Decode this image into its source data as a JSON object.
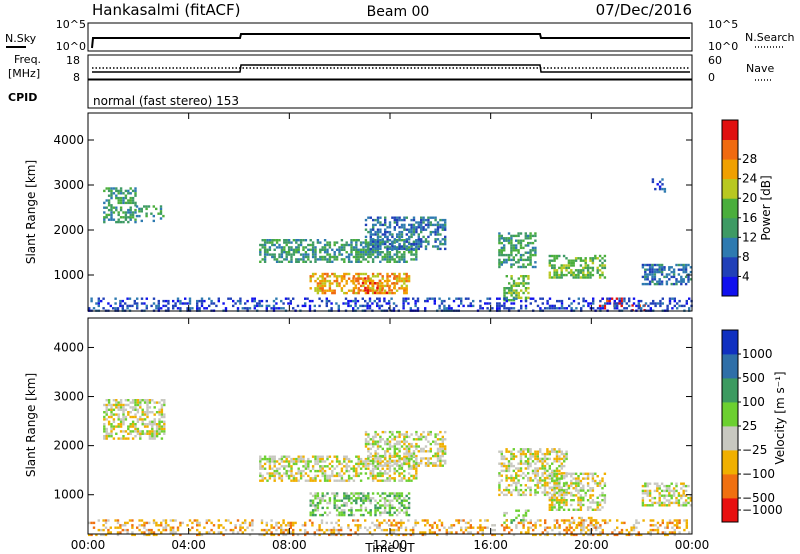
{
  "header": {
    "station": "Hankasalmi (fitACF)",
    "beam": "Beam 00",
    "date": "07/Dec/2016"
  },
  "status_panels": {
    "nsky_label": "N.Sky",
    "freq_label_1": "Freq.",
    "freq_label_2": "[MHz]",
    "cpid_label": "CPID",
    "nsearch_label": "N.Search",
    "nave_label": "Nave",
    "nsky_ticks": [
      "10^5",
      "10^0"
    ],
    "nsearch_ticks": [
      "10^5",
      "10^0"
    ],
    "freq_ticks": [
      "18",
      "8"
    ],
    "nave_ticks": [
      "60",
      "0"
    ],
    "cpid_text": "normal (fast stereo) 153"
  },
  "chart_data": [
    {
      "type": "heatmap",
      "name": "power",
      "ylabel": "Slant Range [km]",
      "ylim": [
        200,
        4600
      ],
      "xlim": [
        0,
        24
      ],
      "yticks": [
        "1000",
        "2000",
        "3000",
        "4000"
      ],
      "colorbar_label": "Power [dB]",
      "colorbar_ticks": [
        "4",
        "8",
        "12",
        "16",
        "20",
        "24",
        "28"
      ],
      "colorbar_colors": [
        "#1010ee",
        "#2040b8",
        "#2e7ab0",
        "#3e9a64",
        "#4aae3c",
        "#b8c820",
        "#f0a000",
        "#f06a10",
        "#e01010"
      ],
      "regions": [
        {
          "t0": 0.6,
          "t1": 1.9,
          "r0": 2150,
          "r1": 2950,
          "level": 3
        },
        {
          "t0": 1.9,
          "t1": 3.0,
          "r0": 2200,
          "r1": 2550,
          "level": 3
        },
        {
          "t0": 6.8,
          "t1": 13.0,
          "r0": 1300,
          "r1": 1800,
          "level": 3
        },
        {
          "t0": 8.8,
          "t1": 12.8,
          "r0": 600,
          "r1": 1050,
          "level": 6
        },
        {
          "t0": 10.5,
          "t1": 12.2,
          "r0": 600,
          "r1": 950,
          "level": 7
        },
        {
          "t0": 11.0,
          "t1": 14.2,
          "r0": 1600,
          "r1": 2300,
          "level": 2
        },
        {
          "t0": 16.3,
          "t1": 17.8,
          "r0": 1200,
          "r1": 1950,
          "level": 3
        },
        {
          "t0": 16.5,
          "t1": 17.5,
          "r0": 450,
          "r1": 1000,
          "level": 4
        },
        {
          "t0": 18.3,
          "t1": 20.5,
          "r0": 950,
          "r1": 1450,
          "level": 4
        },
        {
          "t0": 20.3,
          "t1": 21.2,
          "r0": 250,
          "r1": 500,
          "level": 8
        },
        {
          "t0": 21.4,
          "t1": 22.1,
          "r0": 200,
          "r1": 350,
          "level": 8
        },
        {
          "t0": 22.0,
          "t1": 24.0,
          "r0": 800,
          "r1": 1250,
          "level": 2
        },
        {
          "t0": 22.4,
          "t1": 22.9,
          "r0": 2850,
          "r1": 3150,
          "level": 1
        },
        {
          "t0": 0.0,
          "t1": 24.0,
          "r0": 200,
          "r1": 500,
          "level": 1
        }
      ]
    },
    {
      "type": "heatmap",
      "name": "velocity",
      "ylabel": "Slant Range [km]",
      "xlabel": "Time UT",
      "ylim": [
        200,
        4600
      ],
      "xlim": [
        0,
        24
      ],
      "yticks": [
        "1000",
        "2000",
        "3000",
        "4000"
      ],
      "xticks": [
        "00:00",
        "04:00",
        "08:00",
        "12:00",
        "16:00",
        "20:00",
        "00:00"
      ],
      "colorbar_label": "Velocity [m s⁻¹]",
      "colorbar_ticks": [
        "1000",
        "500",
        "100",
        "25",
        "−25",
        "−100",
        "−500",
        "−1000"
      ],
      "colorbar_colors": [
        "#1030c0",
        "#2f6fa8",
        "#3c9a60",
        "#6cd030",
        "#c8c8c0",
        "#f0b000",
        "#f07010",
        "#e81010"
      ],
      "regions": [
        {
          "t0": 0.6,
          "t1": 3.0,
          "r0": 2150,
          "r1": 2950,
          "level": 4
        },
        {
          "t0": 6.8,
          "t1": 13.0,
          "r0": 1300,
          "r1": 1800,
          "level": 4
        },
        {
          "t0": 8.8,
          "t1": 12.8,
          "r0": 600,
          "r1": 1050,
          "level": 3
        },
        {
          "t0": 11.0,
          "t1": 14.2,
          "r0": 1600,
          "r1": 2300,
          "level": 4
        },
        {
          "t0": 16.3,
          "t1": 19.0,
          "r0": 1000,
          "r1": 1950,
          "level": 4
        },
        {
          "t0": 16.5,
          "t1": 17.5,
          "r0": 450,
          "r1": 700,
          "level": 3
        },
        {
          "t0": 18.3,
          "t1": 20.5,
          "r0": 700,
          "r1": 1450,
          "level": 4
        },
        {
          "t0": 19.0,
          "t1": 20.2,
          "r0": 300,
          "r1": 550,
          "level": 5
        },
        {
          "t0": 22.0,
          "t1": 24.0,
          "r0": 800,
          "r1": 1250,
          "level": 4
        },
        {
          "t0": 0.0,
          "t1": 24.0,
          "r0": 200,
          "r1": 500,
          "level": 5
        }
      ]
    }
  ]
}
